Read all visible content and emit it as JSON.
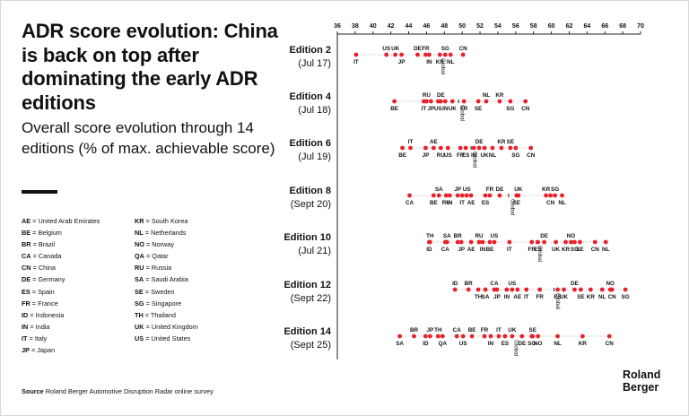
{
  "title": "ADR score evolution: China is back on top after dominating the early ADR editions",
  "subtitle": "Overall score evolution through 14 editions (% of max. achievable score)",
  "legend_left": [
    {
      "code": "AE",
      "name": "United Arab Emirates"
    },
    {
      "code": "BE",
      "name": "Belgium"
    },
    {
      "code": "BR",
      "name": "Brazil"
    },
    {
      "code": "CA",
      "name": "Canada"
    },
    {
      "code": "CN",
      "name": "China"
    },
    {
      "code": "DE",
      "name": "Germany"
    },
    {
      "code": "ES",
      "name": "Spain"
    },
    {
      "code": "FR",
      "name": "France"
    },
    {
      "code": "ID",
      "name": "Indonesia"
    },
    {
      "code": "IN",
      "name": "India"
    },
    {
      "code": "IT",
      "name": "Italy"
    },
    {
      "code": "JP",
      "name": "Japan"
    }
  ],
  "legend_right": [
    {
      "code": "KR",
      "name": "South Korea"
    },
    {
      "code": "NL",
      "name": "Netherlands"
    },
    {
      "code": "NO",
      "name": "Norway"
    },
    {
      "code": "QA",
      "name": "Qatar"
    },
    {
      "code": "RU",
      "name": "Russia"
    },
    {
      "code": "SA",
      "name": "Saudi Arabia"
    },
    {
      "code": "SE",
      "name": "Sweden"
    },
    {
      "code": "SG",
      "name": "Singapore"
    },
    {
      "code": "TH",
      "name": "Thailand"
    },
    {
      "code": "UK",
      "name": "United Kingdom"
    },
    {
      "code": "US",
      "name": "United States"
    }
  ],
  "legend_separator": " = ",
  "source": {
    "label": "Source",
    "text": "Roland Berger Automotive Disruption Radar online survey"
  },
  "logo": {
    "line1": "Roland",
    "line2": "Berger"
  },
  "colors": {
    "dot": "#e8212b",
    "axis": "#222222",
    "grid": "#bbbbbb",
    "text": "#111111"
  },
  "chart_data": {
    "type": "scatter",
    "title": "ADR score evolution",
    "xlim": [
      36,
      70
    ],
    "xticks": [
      36,
      38,
      40,
      42,
      44,
      46,
      48,
      50,
      52,
      54,
      56,
      58,
      60,
      62,
      64,
      66,
      68,
      70
    ],
    "xlabel": "% of max. achievable score",
    "global_label": "Global",
    "editions": [
      {
        "name": "Edition 2",
        "date": "(Jul 17)",
        "global": 47.4,
        "points": [
          {
            "c": "IT",
            "v": 38.1,
            "p": "b"
          },
          {
            "c": "US",
            "v": 41.5,
            "p": "t"
          },
          {
            "c": "UK",
            "v": 42.5,
            "p": "t"
          },
          {
            "c": "JP",
            "v": 43.2,
            "p": "b"
          },
          {
            "c": "DE",
            "v": 45.0,
            "p": "t"
          },
          {
            "c": "FR",
            "v": 45.9,
            "p": "t"
          },
          {
            "c": "IN",
            "v": 46.3,
            "p": "b"
          },
          {
            "c": "KR",
            "v": 47.5,
            "p": "b"
          },
          {
            "c": "SG",
            "v": 48.1,
            "p": "t"
          },
          {
            "c": "NL",
            "v": 48.7,
            "p": "b"
          },
          {
            "c": "CN",
            "v": 50.1,
            "p": "t"
          }
        ]
      },
      {
        "name": "Edition 4",
        "date": "(Jul 18)",
        "global": 49.6,
        "points": [
          {
            "c": "BE",
            "v": 42.4,
            "p": "b"
          },
          {
            "c": "IT",
            "v": 45.7,
            "p": "b"
          },
          {
            "c": "RU",
            "v": 46.0,
            "p": "t"
          },
          {
            "c": "JP",
            "v": 46.5,
            "p": "b"
          },
          {
            "c": "US",
            "v": 47.3,
            "p": "b"
          },
          {
            "c": "DE",
            "v": 47.6,
            "p": "t"
          },
          {
            "c": "IN",
            "v": 48.1,
            "p": "b"
          },
          {
            "c": "UK",
            "v": 48.9,
            "p": "b"
          },
          {
            "c": "FR",
            "v": 50.2,
            "p": "b"
          },
          {
            "c": "SE",
            "v": 51.8,
            "p": "b"
          },
          {
            "c": "NL",
            "v": 52.7,
            "p": "t"
          },
          {
            "c": "KR",
            "v": 54.2,
            "p": "t"
          },
          {
            "c": "SG",
            "v": 55.4,
            "p": "b"
          },
          {
            "c": "CN",
            "v": 57.1,
            "p": "b"
          }
        ]
      },
      {
        "name": "Edition 6",
        "date": "(Jul 19)",
        "global": 51.0,
        "points": [
          {
            "c": "BE",
            "v": 43.3,
            "p": "b"
          },
          {
            "c": "IT",
            "v": 44.2,
            "p": "t"
          },
          {
            "c": "JP",
            "v": 45.9,
            "p": "b"
          },
          {
            "c": "AE",
            "v": 46.8,
            "p": "t"
          },
          {
            "c": "RU",
            "v": 47.6,
            "p": "b"
          },
          {
            "c": "US",
            "v": 48.4,
            "p": "b"
          },
          {
            "c": "FR",
            "v": 49.8,
            "p": "b"
          },
          {
            "c": "ES",
            "v": 50.4,
            "p": "b"
          },
          {
            "c": "IN",
            "v": 51.3,
            "p": "b"
          },
          {
            "c": "DE",
            "v": 51.9,
            "p": "t"
          },
          {
            "c": "UK",
            "v": 52.5,
            "p": "b"
          },
          {
            "c": "NL",
            "v": 53.4,
            "p": "b"
          },
          {
            "c": "KR",
            "v": 54.4,
            "p": "t"
          },
          {
            "c": "SE",
            "v": 55.4,
            "p": "t"
          },
          {
            "c": "SG",
            "v": 56.0,
            "p": "b"
          },
          {
            "c": "CN",
            "v": 57.7,
            "p": "b"
          }
        ]
      },
      {
        "name": "Edition 8",
        "date": "(Sept 20)",
        "global": 55.2,
        "points": [
          {
            "c": "CA",
            "v": 44.1,
            "p": "b"
          },
          {
            "c": "BE",
            "v": 46.8,
            "p": "b"
          },
          {
            "c": "SA",
            "v": 47.4,
            "p": "t"
          },
          {
            "c": "RU",
            "v": 48.2,
            "p": "b"
          },
          {
            "c": "IN",
            "v": 48.6,
            "p": "b"
          },
          {
            "c": "JP",
            "v": 49.5,
            "p": "t"
          },
          {
            "c": "IT",
            "v": 50.0,
            "p": "b"
          },
          {
            "c": "US",
            "v": 50.5,
            "p": "t"
          },
          {
            "c": "AE",
            "v": 51.0,
            "p": "b"
          },
          {
            "c": "ES",
            "v": 52.6,
            "p": "b"
          },
          {
            "c": "FR",
            "v": 53.1,
            "p": "t"
          },
          {
            "c": "DE",
            "v": 54.2,
            "p": "t"
          },
          {
            "c": "SE",
            "v": 56.1,
            "p": "b"
          },
          {
            "c": "UK",
            "v": 56.3,
            "p": "t"
          },
          {
            "c": "KR",
            "v": 59.4,
            "p": "t"
          },
          {
            "c": "CN",
            "v": 59.9,
            "p": "b"
          },
          {
            "c": "SG",
            "v": 60.4,
            "p": "t"
          },
          {
            "c": "NL",
            "v": 61.2,
            "p": "b"
          }
        ]
      },
      {
        "name": "Edition 10",
        "date": "(Jul 21)",
        "global": 58.3,
        "points": [
          {
            "c": "ID",
            "v": 46.3,
            "p": "b"
          },
          {
            "c": "TH",
            "v": 46.4,
            "p": "t"
          },
          {
            "c": "CA",
            "v": 48.1,
            "p": "b"
          },
          {
            "c": "SA",
            "v": 48.3,
            "p": "t"
          },
          {
            "c": "BR",
            "v": 49.5,
            "p": "t"
          },
          {
            "c": "JP",
            "v": 49.9,
            "p": "b"
          },
          {
            "c": "AE",
            "v": 51.0,
            "p": "b"
          },
          {
            "c": "RU",
            "v": 51.9,
            "p": "t"
          },
          {
            "c": "IN",
            "v": 52.3,
            "p": "b"
          },
          {
            "c": "BE",
            "v": 53.1,
            "p": "b"
          },
          {
            "c": "US",
            "v": 53.6,
            "p": "t"
          },
          {
            "c": "IT",
            "v": 55.3,
            "p": "b"
          },
          {
            "c": "FR",
            "v": 57.8,
            "p": "b"
          },
          {
            "c": "ES",
            "v": 58.5,
            "p": "b"
          },
          {
            "c": "DE",
            "v": 59.2,
            "p": "t"
          },
          {
            "c": "UK",
            "v": 60.5,
            "p": "b"
          },
          {
            "c": "KR",
            "v": 61.6,
            "p": "b"
          },
          {
            "c": "NO",
            "v": 62.2,
            "p": "t"
          },
          {
            "c": "SG",
            "v": 62.6,
            "p": "b"
          },
          {
            "c": "SE",
            "v": 63.2,
            "p": "b"
          },
          {
            "c": "CN",
            "v": 64.9,
            "p": "b"
          },
          {
            "c": "NL",
            "v": 66.1,
            "p": "b"
          }
        ]
      },
      {
        "name": "Edition 12",
        "date": "(Sept 22)",
        "global": 60.3,
        "points": [
          {
            "c": "ID",
            "v": 49.2,
            "p": "t"
          },
          {
            "c": "BR",
            "v": 50.7,
            "p": "t"
          },
          {
            "c": "TH",
            "v": 51.8,
            "p": "b"
          },
          {
            "c": "SA",
            "v": 52.6,
            "p": "b"
          },
          {
            "c": "CA",
            "v": 53.6,
            "p": "t"
          },
          {
            "c": "JP",
            "v": 53.9,
            "p": "b"
          },
          {
            "c": "IN",
            "v": 55.0,
            "p": "b"
          },
          {
            "c": "US",
            "v": 55.6,
            "p": "t"
          },
          {
            "c": "AE",
            "v": 56.2,
            "p": "b"
          },
          {
            "c": "IT",
            "v": 57.2,
            "p": "b"
          },
          {
            "c": "FR",
            "v": 58.7,
            "p": "b"
          },
          {
            "c": "ES",
            "v": 60.7,
            "p": "b"
          },
          {
            "c": "UK",
            "v": 61.4,
            "p": "b"
          },
          {
            "c": "DE",
            "v": 62.6,
            "p": "t"
          },
          {
            "c": "SE",
            "v": 63.3,
            "p": "b"
          },
          {
            "c": "KR",
            "v": 64.4,
            "p": "b"
          },
          {
            "c": "NL",
            "v": 65.7,
            "p": "b"
          },
          {
            "c": "NO",
            "v": 66.6,
            "p": "t"
          },
          {
            "c": "CN",
            "v": 66.8,
            "p": "b"
          },
          {
            "c": "SG",
            "v": 68.3,
            "p": "b"
          }
        ]
      },
      {
        "name": "Edition 14",
        "date": "(Sept 25)",
        "global": 55.6,
        "points": [
          {
            "c": "SA",
            "v": 43.0,
            "p": "b"
          },
          {
            "c": "BR",
            "v": 44.6,
            "p": "t"
          },
          {
            "c": "ID",
            "v": 45.9,
            "p": "b"
          },
          {
            "c": "JP",
            "v": 46.4,
            "p": "t"
          },
          {
            "c": "TH",
            "v": 47.3,
            "p": "t"
          },
          {
            "c": "QA",
            "v": 47.8,
            "p": "b"
          },
          {
            "c": "CA",
            "v": 49.4,
            "p": "t"
          },
          {
            "c": "US",
            "v": 50.1,
            "p": "b"
          },
          {
            "c": "BE",
            "v": 51.1,
            "p": "t"
          },
          {
            "c": "FR",
            "v": 52.5,
            "p": "t"
          },
          {
            "c": "IN",
            "v": 53.2,
            "p": "b"
          },
          {
            "c": "IT",
            "v": 54.1,
            "p": "t"
          },
          {
            "c": "ES",
            "v": 54.8,
            "p": "b"
          },
          {
            "c": "UK",
            "v": 55.6,
            "p": "t"
          },
          {
            "c": "DE",
            "v": 56.7,
            "p": "b"
          },
          {
            "c": "SE",
            "v": 57.9,
            "p": "t"
          },
          {
            "c": "SG",
            "v": 57.8,
            "p": "b"
          },
          {
            "c": "NO",
            "v": 58.5,
            "p": "b"
          },
          {
            "c": "NL",
            "v": 60.7,
            "p": "b"
          },
          {
            "c": "KR",
            "v": 63.5,
            "p": "b"
          },
          {
            "c": "CN",
            "v": 66.5,
            "p": "b"
          }
        ]
      }
    ]
  }
}
